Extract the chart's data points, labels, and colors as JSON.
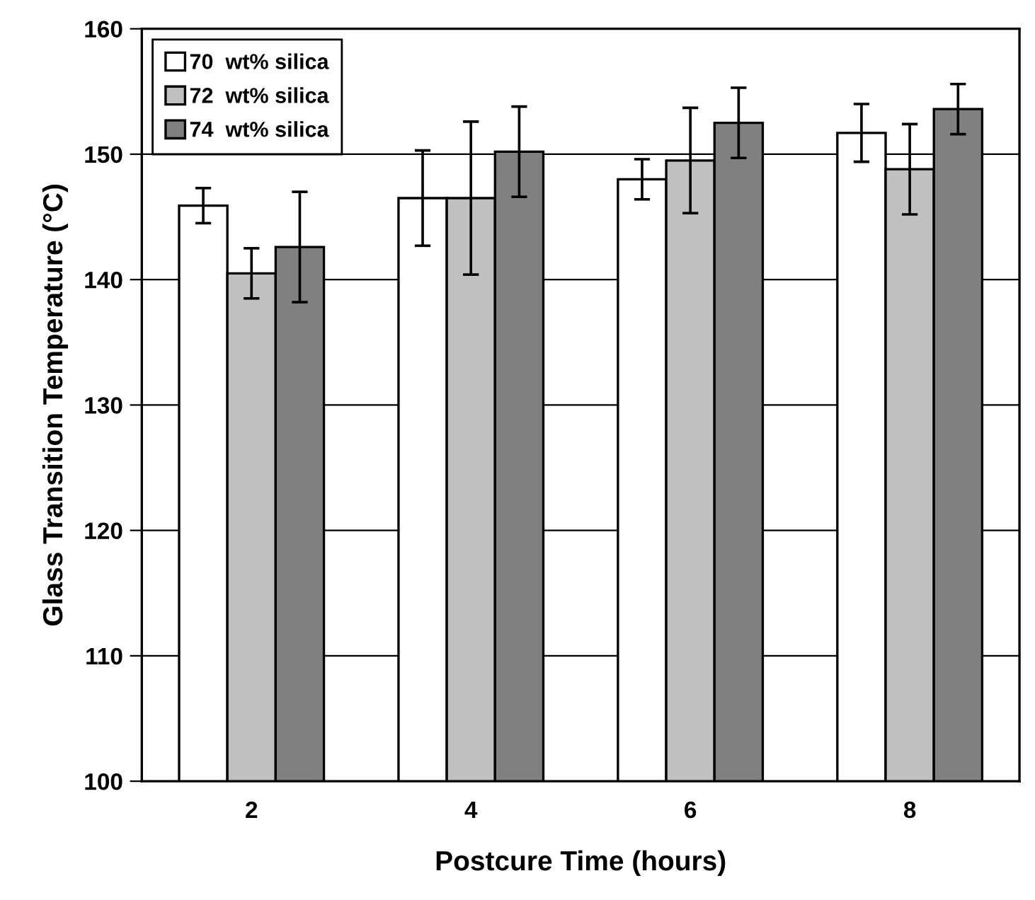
{
  "chart_data": {
    "type": "bar",
    "xlabel": "Postcure Time (hours)",
    "ylabel": "Glass Transition Temperature (°C)",
    "categories": [
      "2",
      "4",
      "6",
      "8"
    ],
    "series": [
      {
        "name": "70  wt% silica",
        "color": "#ffffff",
        "values": [
          145.9,
          146.5,
          148.0,
          151.7
        ],
        "errors": [
          1.4,
          3.8,
          1.6,
          2.3
        ]
      },
      {
        "name": "72  wt% silica",
        "color": "#c0c0c0",
        "values": [
          140.5,
          146.5,
          149.5,
          148.8
        ],
        "errors": [
          2.0,
          6.1,
          4.2,
          3.6
        ]
      },
      {
        "name": "74  wt% silica",
        "color": "#808080",
        "values": [
          142.6,
          150.2,
          152.5,
          153.6
        ],
        "errors": [
          4.4,
          3.6,
          2.8,
          2.0
        ]
      }
    ],
    "ylim": [
      100,
      160
    ],
    "yticks": [
      100,
      110,
      120,
      130,
      140,
      150,
      160
    ],
    "grid": "y",
    "legend": "top left"
  }
}
